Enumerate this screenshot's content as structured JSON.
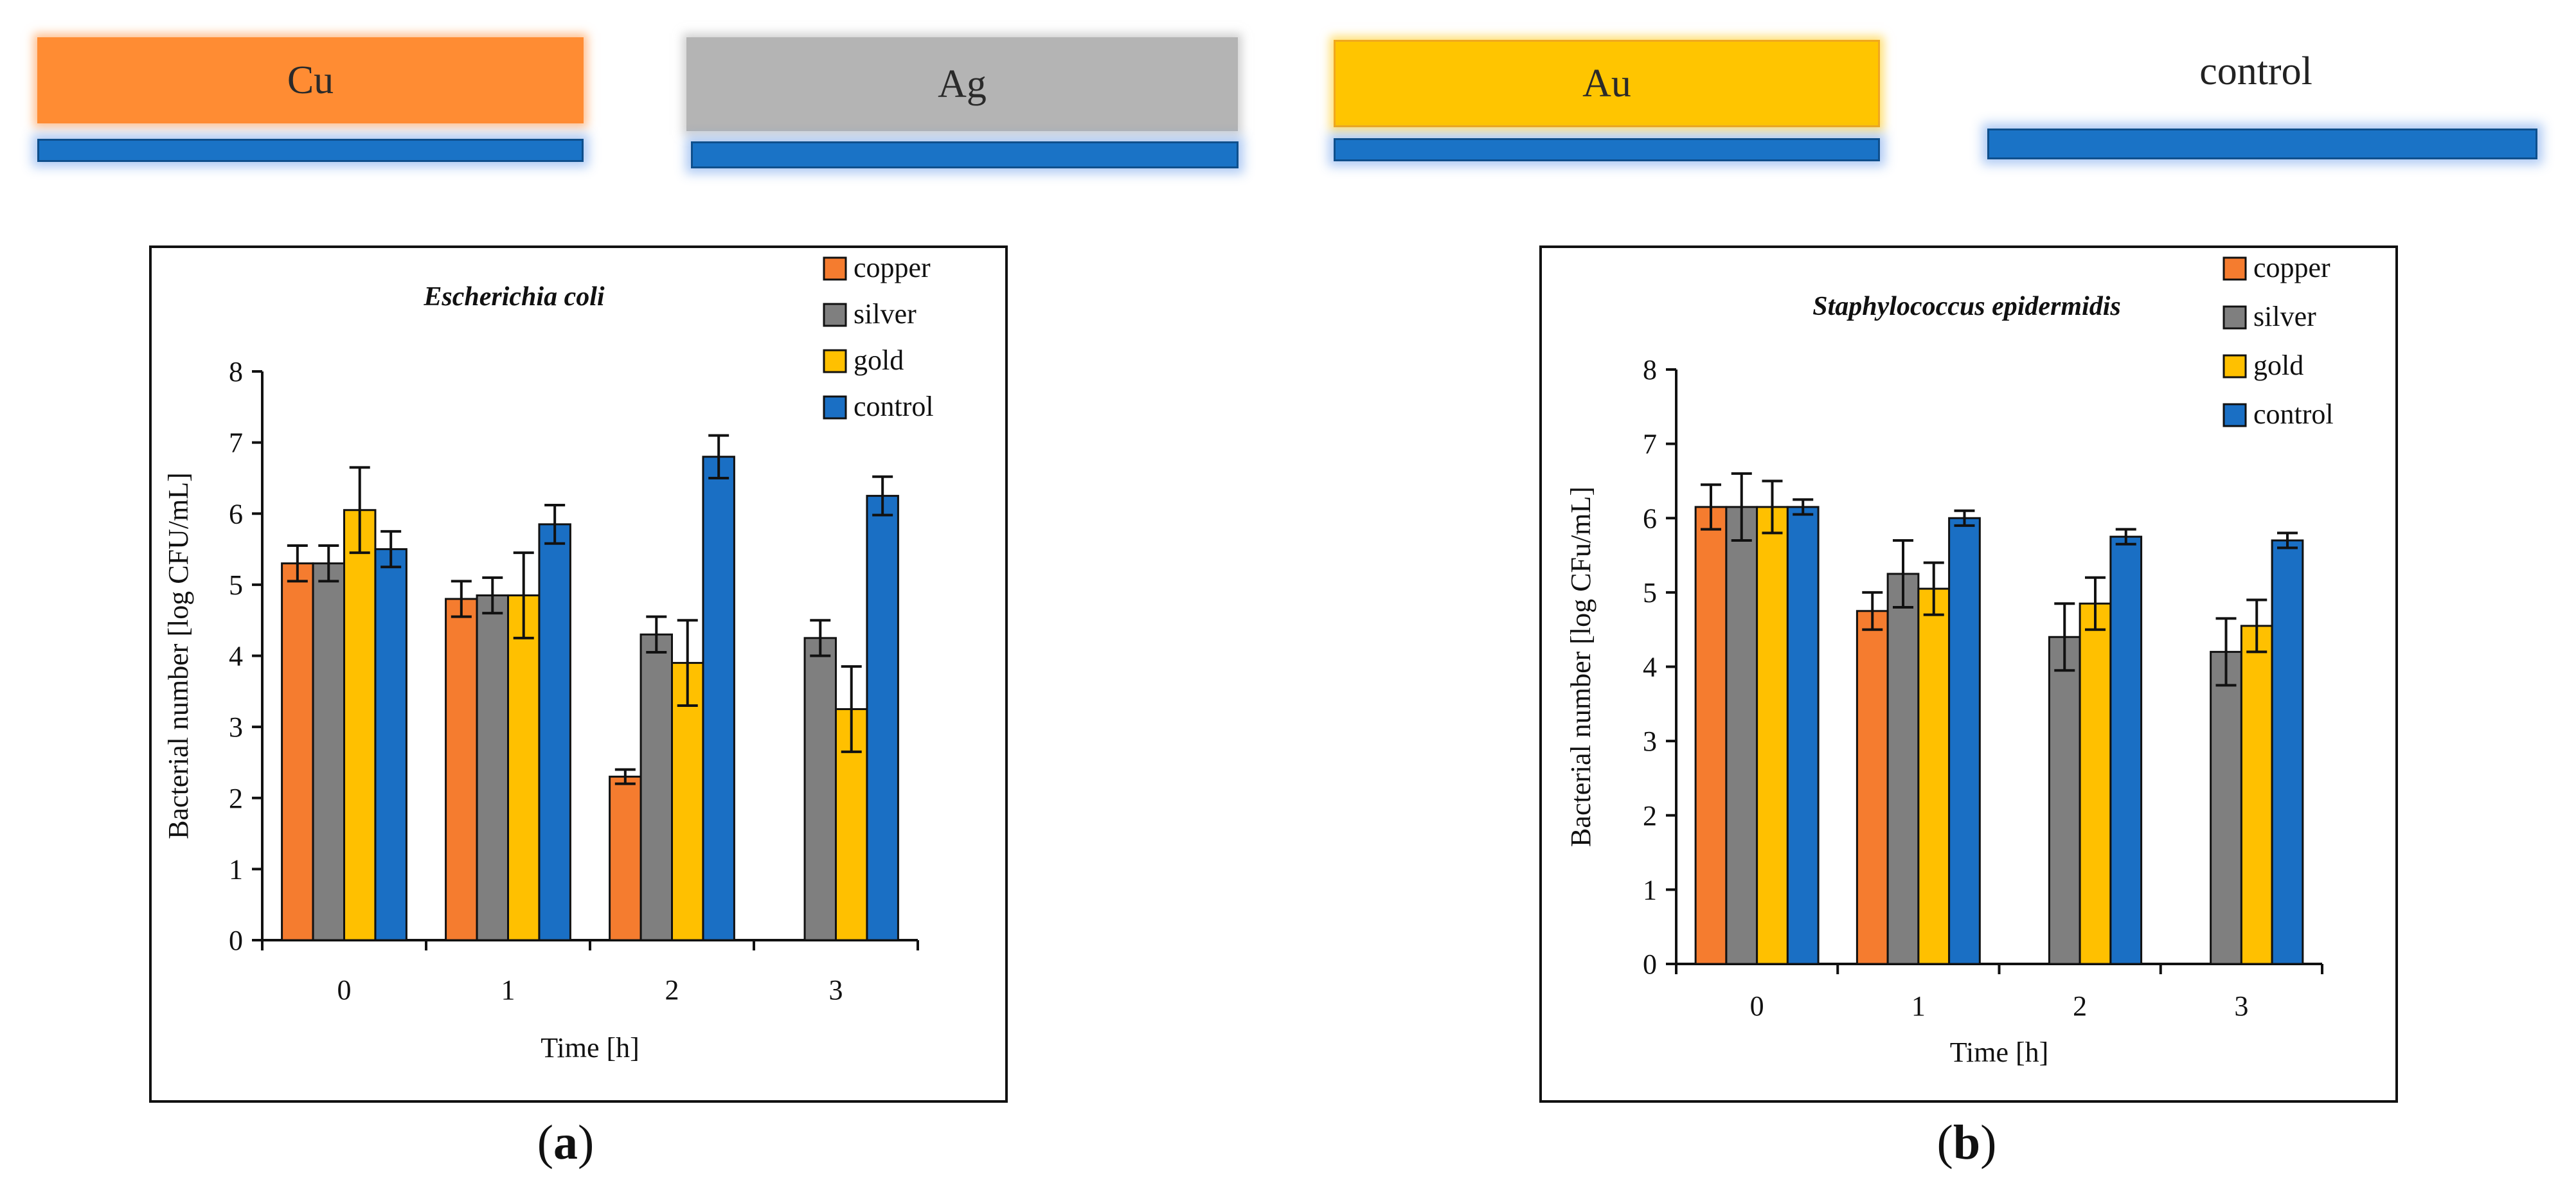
{
  "schematic": {
    "samples": [
      {
        "key": "cu",
        "label": "Cu"
      },
      {
        "key": "ag",
        "label": "Ag"
      },
      {
        "key": "au",
        "label": "Au"
      },
      {
        "key": "control",
        "label": "control"
      }
    ],
    "colors": {
      "cu": "#ff8c33",
      "ag": "#b4b4b4",
      "au": "#ffc500",
      "substrate": "#1a73c6"
    }
  },
  "panels": [
    {
      "open": "(",
      "letter": "a",
      "close": ")"
    },
    {
      "open": "(",
      "letter": "b",
      "close": ")"
    }
  ],
  "chart_data": [
    {
      "type": "bar",
      "title": "Escherichia coli",
      "xlabel": "Time [h]",
      "ylabel": "Bacterial number [log CFU/mL]",
      "ylim": [
        0,
        8
      ],
      "yticks": [
        "0",
        "1",
        "2",
        "3",
        "4",
        "5",
        "6",
        "7",
        "8"
      ],
      "categories": [
        "0",
        "1",
        "2",
        "3"
      ],
      "legend_position": "top-right",
      "series": [
        {
          "name": "copper",
          "color": "#f57c2f",
          "values": [
            5.3,
            4.8,
            2.3,
            0
          ],
          "errors": [
            0.25,
            0.25,
            0.1,
            0
          ]
        },
        {
          "name": "silver",
          "color": "#7f7f7f",
          "values": [
            5.3,
            4.85,
            4.3,
            4.25
          ],
          "errors": [
            0.25,
            0.25,
            0.25,
            0.25
          ]
        },
        {
          "name": "gold",
          "color": "#ffc000",
          "values": [
            6.05,
            4.85,
            3.9,
            3.25
          ],
          "errors": [
            0.6,
            0.6,
            0.6,
            0.6
          ]
        },
        {
          "name": "control",
          "color": "#1a6fc4",
          "values": [
            5.5,
            5.85,
            6.8,
            6.25
          ],
          "errors": [
            0.25,
            0.27,
            0.3,
            0.27
          ]
        }
      ]
    },
    {
      "type": "bar",
      "title": "Staphylococcus epidermidis",
      "xlabel": "Time [h]",
      "ylabel": "Bacterial number [log CFu/mL]",
      "ylim": [
        0,
        8
      ],
      "yticks": [
        "0",
        "1",
        "2",
        "3",
        "4",
        "5",
        "6",
        "7",
        "8"
      ],
      "categories": [
        "0",
        "1",
        "2",
        "3"
      ],
      "legend_position": "top-right",
      "series": [
        {
          "name": "copper",
          "color": "#f57c2f",
          "values": [
            6.15,
            4.75,
            0,
            0
          ],
          "errors": [
            0.3,
            0.25,
            0,
            0
          ]
        },
        {
          "name": "silver",
          "color": "#7f7f7f",
          "values": [
            6.15,
            5.25,
            4.4,
            4.2
          ],
          "errors": [
            0.45,
            0.45,
            0.45,
            0.45
          ]
        },
        {
          "name": "gold",
          "color": "#ffc000",
          "values": [
            6.15,
            5.05,
            4.85,
            4.55
          ],
          "errors": [
            0.35,
            0.35,
            0.35,
            0.35
          ]
        },
        {
          "name": "control",
          "color": "#1a6fc4",
          "values": [
            6.15,
            6.0,
            5.75,
            5.7
          ],
          "errors": [
            0.1,
            0.1,
            0.1,
            0.1
          ]
        }
      ]
    }
  ]
}
